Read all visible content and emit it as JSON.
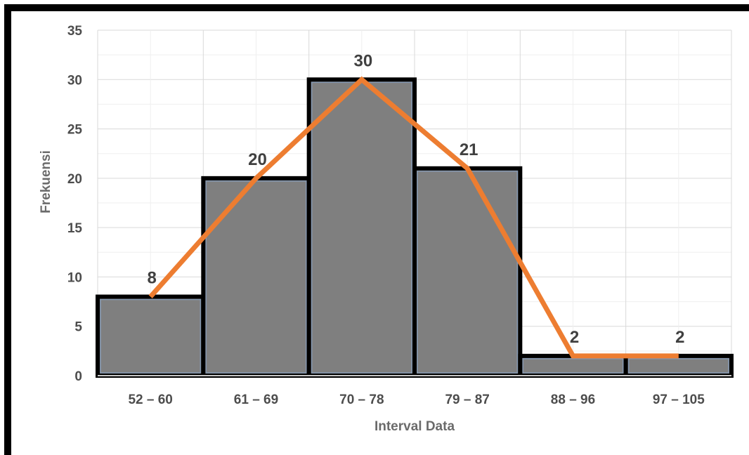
{
  "chart_data": {
    "type": "bar",
    "categories": [
      "52 – 60",
      "61 – 69",
      "70 – 78",
      "79 – 87",
      "88 – 96",
      "97 – 105"
    ],
    "values": [
      8,
      20,
      30,
      21,
      2,
      2
    ],
    "data_labels": [
      "8",
      "20",
      "30",
      "21",
      "2",
      "2"
    ],
    "overlay_line": {
      "type": "line",
      "description": "frequency polygon through bar midpoints",
      "values": [
        8,
        20,
        30,
        21,
        2,
        2
      ],
      "color": "#ED7D31"
    },
    "xlabel": "Interval Data",
    "ylabel": "Frekuensi",
    "ylim": [
      0,
      35
    ],
    "yticks": [
      "0",
      "5",
      "10",
      "15",
      "20",
      "25",
      "30",
      "35"
    ],
    "grid": true,
    "legend": "none",
    "colors": {
      "bar_fill": "#7f7f7f",
      "bar_outline": "#000000",
      "bar_inner_edge": "#8497b0",
      "gridline": "#e6e6e6",
      "line": "#ED7D31",
      "frame": "#000000"
    }
  }
}
